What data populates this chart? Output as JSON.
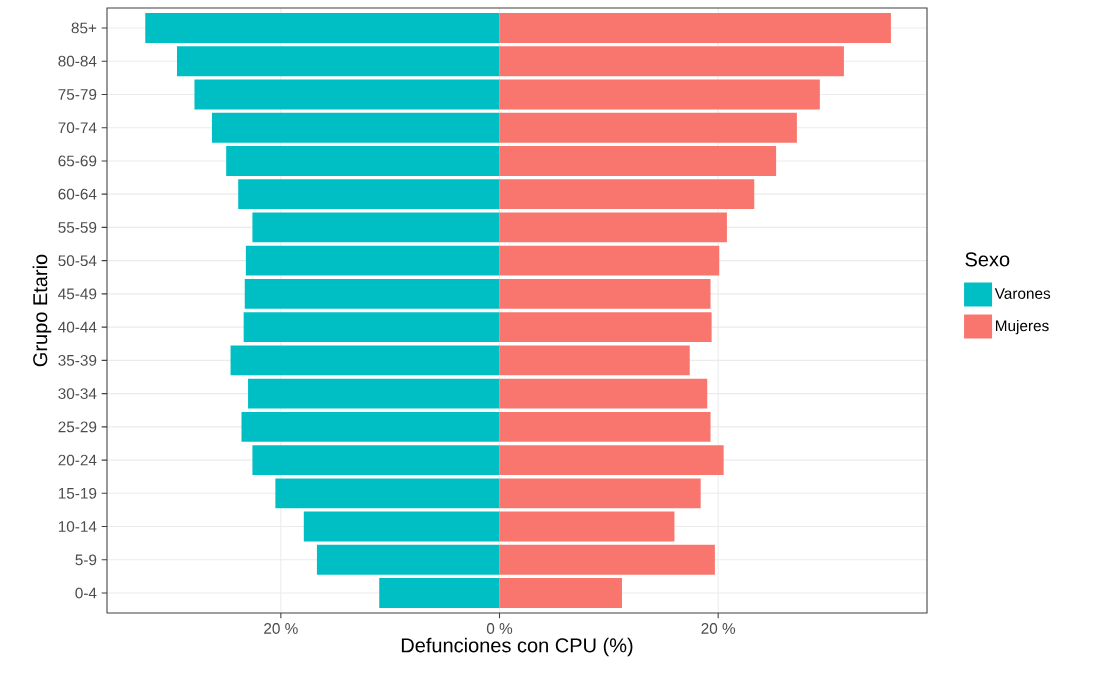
{
  "chart_data": {
    "type": "bar",
    "orientation": "horizontal",
    "stacked": true,
    "xlabel": "Defunciones con CPU (%)",
    "ylabel": "Grupo Etario",
    "legend_title": "Sexo",
    "legend": "right",
    "grid": true,
    "categories": [
      "85+",
      "80-84",
      "75-79",
      "70-74",
      "65-69",
      "60-64",
      "55-59",
      "50-54",
      "45-49",
      "40-44",
      "35-39",
      "30-34",
      "25-29",
      "20-24",
      "15-19",
      "10-14",
      "5-9",
      "0-4"
    ],
    "series": [
      {
        "name": "Varones",
        "color": "#00bfc4",
        "values": [
          -32.4,
          -29.5,
          -27.9,
          -26.3,
          -25.0,
          -23.9,
          -22.6,
          -23.2,
          -23.3,
          -23.4,
          -24.6,
          -23.0,
          -23.6,
          -22.6,
          -20.5,
          -17.9,
          -16.7,
          -11.0
        ]
      },
      {
        "name": "Mujeres",
        "color": "#f8766d",
        "values": [
          35.8,
          31.5,
          29.3,
          27.2,
          25.3,
          23.3,
          20.8,
          20.1,
          19.3,
          19.4,
          17.4,
          19.0,
          19.3,
          20.5,
          18.4,
          16.0,
          19.7,
          11.2
        ]
      }
    ],
    "xlim": [
      -35.9,
      39.1
    ],
    "xticks": [
      {
        "value": -20,
        "label": "20 %"
      },
      {
        "value": 0,
        "label": "0 %"
      },
      {
        "value": 20,
        "label": "20 %"
      }
    ]
  }
}
